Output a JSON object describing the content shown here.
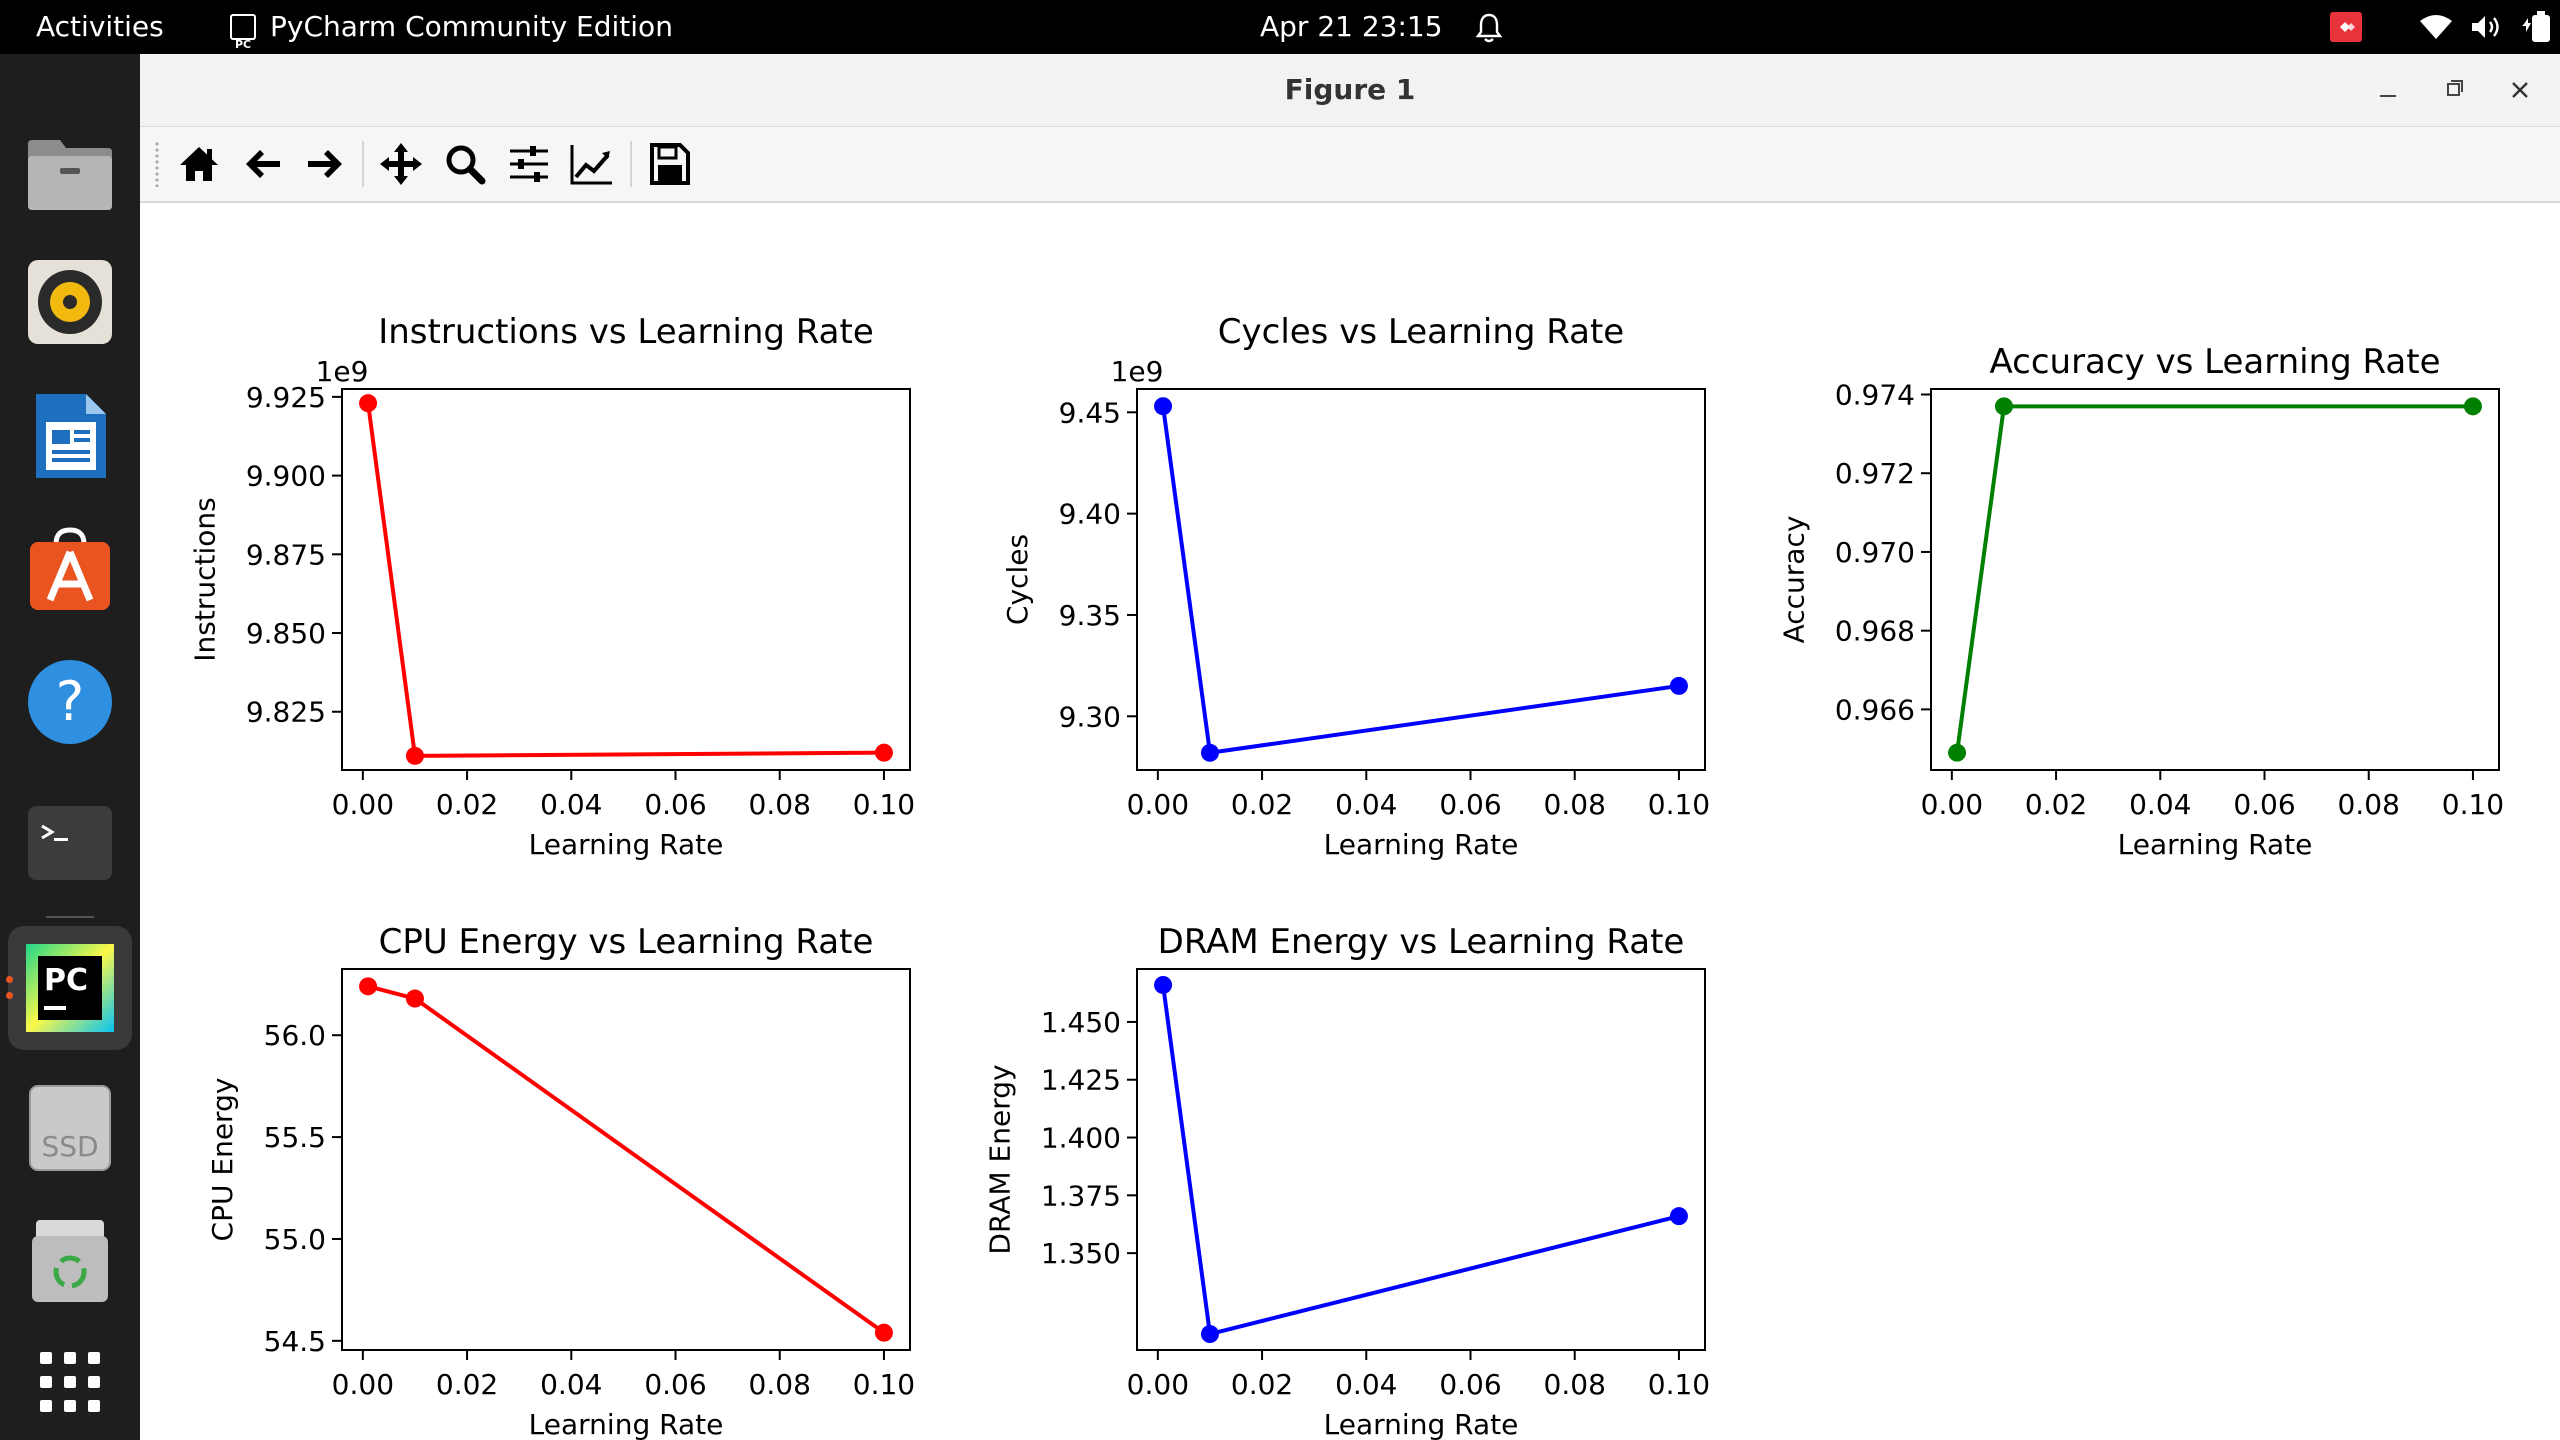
{
  "topbar": {
    "activities": "Activities",
    "app_name": "PyCharm Community Edition",
    "app_icon_text": "PC",
    "clock": "Apr 21  23:15"
  },
  "dock": {
    "icons": [
      "files-icon",
      "rhythmbox-icon",
      "libreoffice-writer-icon",
      "app-center-icon",
      "help-icon",
      "terminal-icon",
      "pycharm-icon",
      "ssd-drive-icon",
      "trash-icon",
      "show-apps-icon"
    ],
    "pycharm_label": "PC",
    "ssd_label": "SSD",
    "help_label": "?"
  },
  "window": {
    "title": "Figure 1",
    "toolbar_icons": [
      "home-icon",
      "back-icon",
      "forward-icon",
      "pan-icon",
      "zoom-icon",
      "configure-subplots-icon",
      "edit-axis-icon",
      "save-icon"
    ]
  },
  "chart_data": [
    {
      "type": "line",
      "title": "Instructions vs Learning Rate",
      "xlabel": "Learning Rate",
      "ylabel": "Instructions",
      "offset_label": "1e9",
      "color": "#ff0000",
      "x": [
        0.001,
        0.01,
        0.1
      ],
      "y": [
        9.923,
        9.811,
        9.812
      ],
      "xlim": [
        -0.004,
        0.105
      ],
      "ylim": [
        9.8065,
        9.9275
      ],
      "xticks": [
        0.0,
        0.02,
        0.04,
        0.06,
        0.08,
        0.1
      ],
      "xticklabels": [
        "0.00",
        "0.02",
        "0.04",
        "0.06",
        "0.08",
        "0.10"
      ],
      "yticks": [
        9.825,
        9.85,
        9.875,
        9.9,
        9.925
      ],
      "yticklabels": [
        "9.825",
        "9.850",
        "9.875",
        "9.900",
        "9.925"
      ]
    },
    {
      "type": "line",
      "title": "Cycles vs Learning Rate",
      "xlabel": "Learning Rate",
      "ylabel": "Cycles",
      "offset_label": "1e9",
      "color": "#0000ff",
      "x": [
        0.001,
        0.01,
        0.1
      ],
      "y": [
        9.453,
        9.282,
        9.315
      ],
      "xlim": [
        -0.004,
        0.105
      ],
      "ylim": [
        9.2735,
        9.4615
      ],
      "xticks": [
        0.0,
        0.02,
        0.04,
        0.06,
        0.08,
        0.1
      ],
      "xticklabels": [
        "0.00",
        "0.02",
        "0.04",
        "0.06",
        "0.08",
        "0.10"
      ],
      "yticks": [
        9.3,
        9.35,
        9.4,
        9.45
      ],
      "yticklabels": [
        "9.30",
        "9.35",
        "9.40",
        "9.45"
      ]
    },
    {
      "type": "line",
      "title": "Accuracy vs Learning Rate",
      "xlabel": "Learning Rate",
      "ylabel": "Accuracy",
      "offset_label": "",
      "color": "#008000",
      "x": [
        0.001,
        0.01,
        0.1
      ],
      "y": [
        0.9649,
        0.9737,
        0.9737
      ],
      "xlim": [
        -0.004,
        0.105
      ],
      "ylim": [
        0.96446,
        0.97414
      ],
      "xticks": [
        0.0,
        0.02,
        0.04,
        0.06,
        0.08,
        0.1
      ],
      "xticklabels": [
        "0.00",
        "0.02",
        "0.04",
        "0.06",
        "0.08",
        "0.10"
      ],
      "yticks": [
        0.966,
        0.968,
        0.97,
        0.972,
        0.974
      ],
      "yticklabels": [
        "0.966",
        "0.968",
        "0.970",
        "0.972",
        "0.974"
      ]
    },
    {
      "type": "line",
      "title": "CPU Energy vs Learning Rate",
      "xlabel": "Learning Rate",
      "ylabel": "CPU Energy",
      "offset_label": "",
      "color": "#ff0000",
      "x": [
        0.001,
        0.01,
        0.1
      ],
      "y": [
        56.24,
        56.18,
        54.54
      ],
      "xlim": [
        -0.004,
        0.105
      ],
      "ylim": [
        54.455,
        56.325
      ],
      "xticks": [
        0.0,
        0.02,
        0.04,
        0.06,
        0.08,
        0.1
      ],
      "xticklabels": [
        "0.00",
        "0.02",
        "0.04",
        "0.06",
        "0.08",
        "0.10"
      ],
      "yticks": [
        54.5,
        55.0,
        55.5,
        56.0
      ],
      "yticklabels": [
        "54.5",
        "55.0",
        "55.5",
        "56.0"
      ]
    },
    {
      "type": "line",
      "title": "DRAM Energy vs Learning Rate",
      "xlabel": "Learning Rate",
      "ylabel": "DRAM Energy",
      "offset_label": "",
      "color": "#0000ff",
      "x": [
        0.001,
        0.01,
        0.1
      ],
      "y": [
        1.466,
        1.315,
        1.366
      ],
      "xlim": [
        -0.004,
        0.105
      ],
      "ylim": [
        1.3081,
        1.4729
      ],
      "xticks": [
        0.0,
        0.02,
        0.04,
        0.06,
        0.08,
        0.1
      ],
      "xticklabels": [
        "0.00",
        "0.02",
        "0.04",
        "0.06",
        "0.08",
        "0.10"
      ],
      "yticks": [
        1.35,
        1.375,
        1.4,
        1.425,
        1.45
      ],
      "yticklabels": [
        "1.350",
        "1.375",
        "1.400",
        "1.425",
        "1.450"
      ]
    }
  ]
}
